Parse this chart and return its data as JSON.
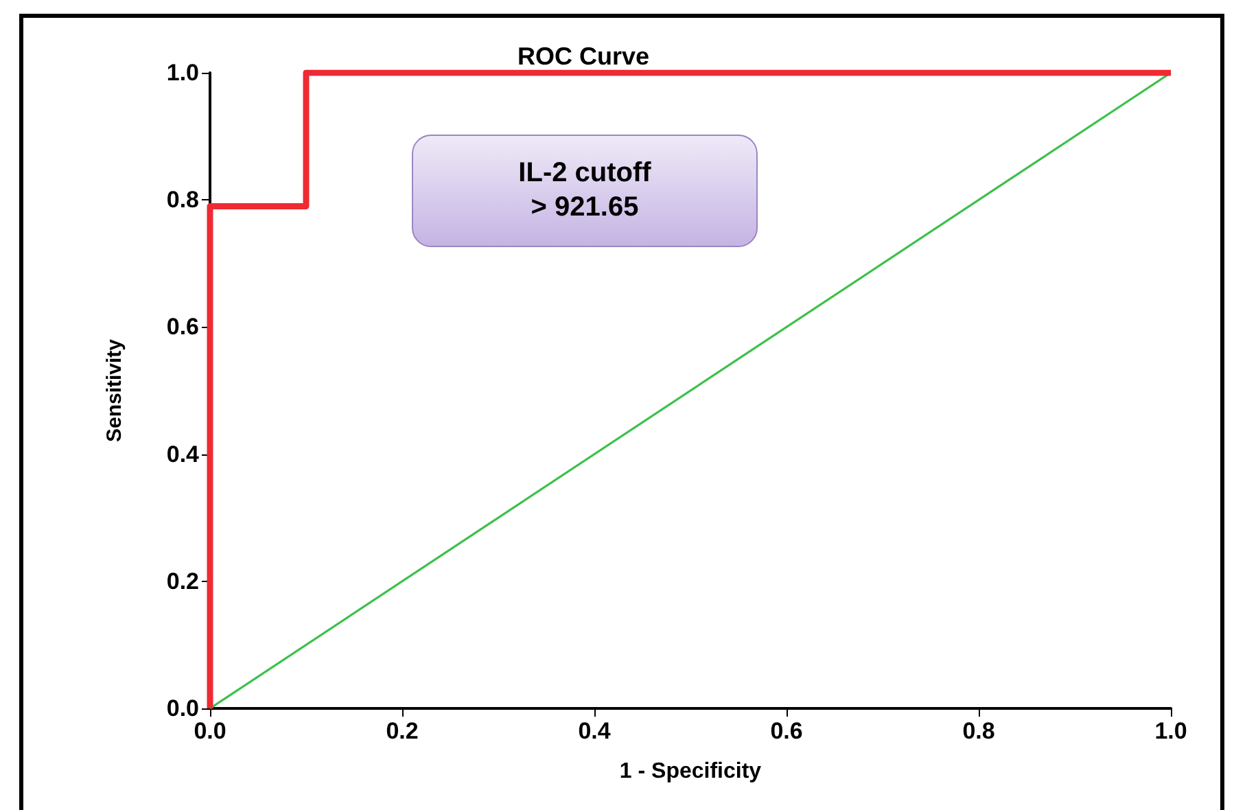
{
  "chart_data": {
    "type": "line",
    "title": "ROC Curve",
    "xlabel": "1 - Specificity",
    "ylabel": "Sensitivity",
    "annotations": [
      "IL-2 cutoff\n> 921.65"
    ],
    "series": [
      {
        "color": "#ee2a33",
        "x": [
          0,
          0,
          0.1,
          0.1,
          1
        ],
        "values": [
          0,
          0.79,
          0.79,
          1,
          1
        ]
      },
      {
        "color": "#3cc04a",
        "x": [
          0,
          1
        ],
        "values": [
          0,
          1
        ]
      }
    ],
    "xlim": [
      0,
      1
    ],
    "ylim": [
      0,
      1
    ],
    "xticks": [
      {
        "value": 0,
        "label": "0.0"
      },
      {
        "value": 0.2,
        "label": "0.2"
      },
      {
        "value": 0.4,
        "label": "0.4"
      },
      {
        "value": 0.6,
        "label": "0.6"
      },
      {
        "value": 0.8,
        "label": "0.8"
      },
      {
        "value": 1,
        "label": "1.0"
      }
    ],
    "yticks": [
      {
        "value": 0,
        "label": "0.0"
      },
      {
        "value": 0.2,
        "label": "0.2"
      },
      {
        "value": 0.4,
        "label": "0.4"
      },
      {
        "value": 0.6,
        "label": "0.6"
      },
      {
        "value": 0.8,
        "label": "0.8"
      },
      {
        "value": 1,
        "label": "1.0"
      }
    ],
    "grid": false,
    "marker": "none"
  }
}
